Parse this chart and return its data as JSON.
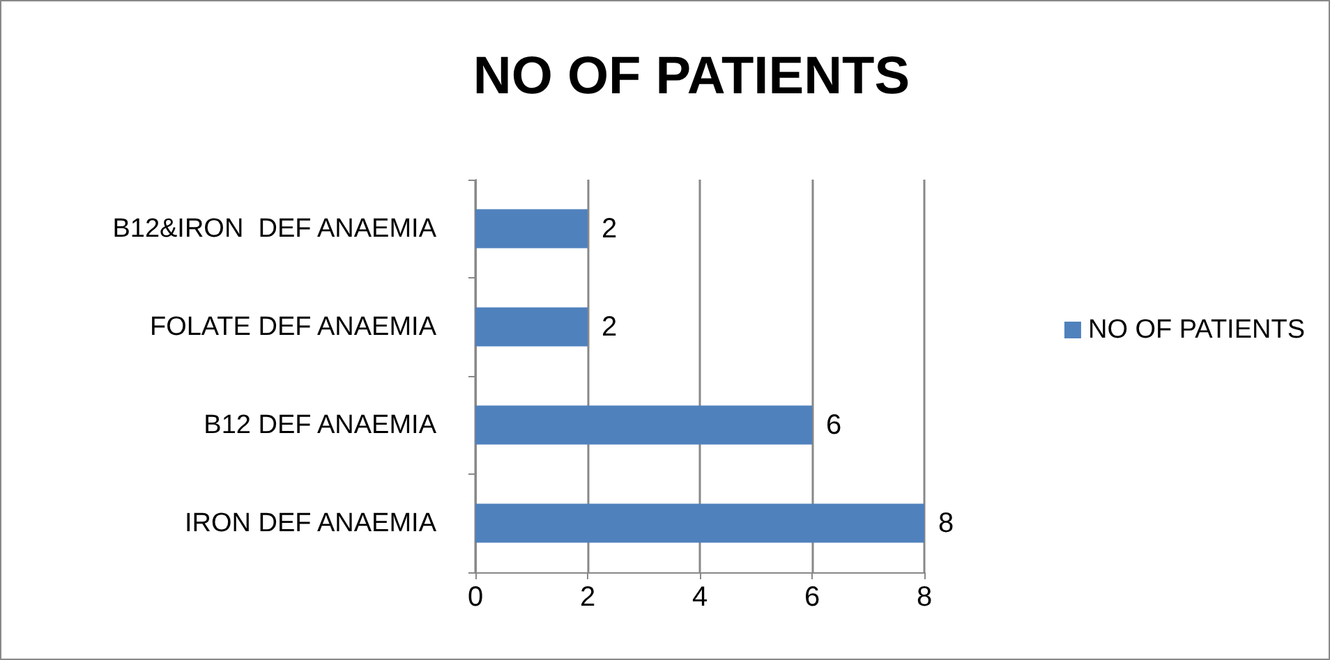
{
  "chart_data": {
    "type": "bar",
    "title": "NO OF PATIENTS",
    "orientation": "horizontal",
    "categories": [
      "B12&IRON  DEF ANAEMIA",
      "FOLATE DEF ANAEMIA",
      "B12 DEF ANAEMIA",
      "IRON DEF ANAEMIA"
    ],
    "series": [
      {
        "name": "NO OF PATIENTS",
        "color": "#4f81bd",
        "values": [
          2,
          2,
          6,
          8
        ]
      }
    ],
    "xlim": [
      0,
      8
    ],
    "xticks": [
      0,
      2,
      4,
      6,
      8
    ],
    "grid": "x",
    "legend": "right",
    "data_labels": true
  }
}
